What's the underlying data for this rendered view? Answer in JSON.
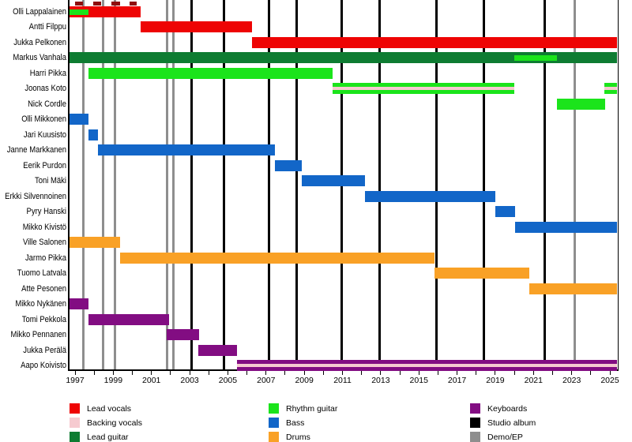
{
  "chart_data": {
    "type": "bar",
    "subtype": "band-membership-timeline-gantt",
    "title": "",
    "x_axis": {
      "range_start": 1996.71,
      "range_end": 2025.41,
      "major_tick_years": [
        1997,
        1999,
        2001,
        2003,
        2005,
        2007,
        2009,
        2011,
        2013,
        2015,
        2017,
        2019,
        2021,
        2023,
        2025
      ],
      "minor_tick_step": 1
    },
    "colors": {
      "lead_vocals": "#EE0404",
      "backing_vocals": "#F6CAD0",
      "lead_guitar": "#0E7C32",
      "rhythm_guitar": "#1BE41B",
      "bass": "#1266C8",
      "drums": "#F9A126",
      "keyboards": "#820D82",
      "studio_album": "#000000",
      "demo_ep": "#8E8E8E"
    },
    "members": [
      {
        "name": "Olli Lappalainen",
        "bars": [
          {
            "role": "lead_vocals",
            "start": 1996.71,
            "end": 2000.43,
            "layer": "main"
          },
          {
            "role": "rhythm_guitar",
            "start": 1996.71,
            "end": 1997.7,
            "layer": "half"
          }
        ]
      },
      {
        "name": "Antti Filppu",
        "bars": [
          {
            "role": "lead_vocals",
            "start": 2000.43,
            "end": 2006.25,
            "layer": "main"
          }
        ]
      },
      {
        "name": "Jukka Pelkonen",
        "bars": [
          {
            "role": "lead_vocals",
            "start": 2006.25,
            "end": 2025.37,
            "layer": "main"
          }
        ]
      },
      {
        "name": "Markus Vanhala",
        "bars": [
          {
            "role": "lead_guitar",
            "start": 1996.71,
            "end": 2025.37,
            "layer": "main"
          },
          {
            "role": "rhythm_guitar",
            "start": 2019.99,
            "end": 2022.23,
            "layer": "half"
          }
        ]
      },
      {
        "name": "Harri Pikka",
        "bars": [
          {
            "role": "rhythm_guitar",
            "start": 1997.7,
            "end": 2010.48,
            "layer": "main"
          }
        ]
      },
      {
        "name": "Joonas Koto",
        "bars": [
          {
            "role": "rhythm_guitar",
            "start": 2010.48,
            "end": 2019.99,
            "layer": "main"
          },
          {
            "role": "backing_vocals",
            "start": 2010.48,
            "end": 2019.99,
            "layer": "stripe"
          },
          {
            "role": "rhythm_guitar",
            "start": 2024.71,
            "end": 2025.37,
            "layer": "main"
          },
          {
            "role": "backing_vocals",
            "start": 2024.71,
            "end": 2025.37,
            "layer": "stripe"
          }
        ]
      },
      {
        "name": "Nick Cordle",
        "bars": [
          {
            "role": "rhythm_guitar",
            "start": 2022.23,
            "end": 2024.75,
            "layer": "main"
          }
        ]
      },
      {
        "name": "Olli Mikkonen",
        "bars": [
          {
            "role": "bass",
            "start": 1996.71,
            "end": 1997.7,
            "layer": "main"
          }
        ]
      },
      {
        "name": "Jari Kuusisto",
        "bars": [
          {
            "role": "bass",
            "start": 1997.7,
            "end": 1998.2,
            "layer": "main"
          }
        ]
      },
      {
        "name": "Janne Markkanen",
        "bars": [
          {
            "role": "bass",
            "start": 1998.2,
            "end": 2007.46,
            "layer": "main"
          }
        ]
      },
      {
        "name": "Eerik Purdon",
        "bars": [
          {
            "role": "bass",
            "start": 2007.46,
            "end": 2008.87,
            "layer": "main"
          }
        ]
      },
      {
        "name": "Toni Mäki",
        "bars": [
          {
            "role": "bass",
            "start": 2008.87,
            "end": 2012.18,
            "layer": "main"
          }
        ]
      },
      {
        "name": "Erkki Silvennoinen",
        "bars": [
          {
            "role": "bass",
            "start": 2012.18,
            "end": 2019.0,
            "layer": "main"
          }
        ]
      },
      {
        "name": "Pyry Hanski",
        "bars": [
          {
            "role": "bass",
            "start": 2019.0,
            "end": 2020.03,
            "layer": "main"
          }
        ]
      },
      {
        "name": "Mikko Kivistö",
        "bars": [
          {
            "role": "bass",
            "start": 2020.03,
            "end": 2025.37,
            "layer": "main"
          }
        ]
      },
      {
        "name": "Ville Salonen",
        "bars": [
          {
            "role": "drums",
            "start": 1996.71,
            "end": 1999.36,
            "layer": "main"
          }
        ]
      },
      {
        "name": "Jarmo Pikka",
        "bars": [
          {
            "role": "drums",
            "start": 1999.36,
            "end": 2015.82,
            "layer": "main"
          }
        ]
      },
      {
        "name": "Tuomo Latvala",
        "bars": [
          {
            "role": "drums",
            "start": 2015.82,
            "end": 2020.78,
            "layer": "main"
          }
        ]
      },
      {
        "name": "Atte Pesonen",
        "bars": [
          {
            "role": "drums",
            "start": 2020.78,
            "end": 2025.37,
            "layer": "main"
          }
        ]
      },
      {
        "name": "Mikko Nykänen",
        "bars": [
          {
            "role": "keyboards",
            "start": 1996.71,
            "end": 1997.7,
            "layer": "main"
          }
        ]
      },
      {
        "name": "Tomi Pekkola",
        "bars": [
          {
            "role": "keyboards",
            "start": 1997.7,
            "end": 2001.92,
            "layer": "main"
          }
        ]
      },
      {
        "name": "Mikko Pennanen",
        "bars": [
          {
            "role": "keyboards",
            "start": 2001.8,
            "end": 2003.49,
            "layer": "main"
          }
        ]
      },
      {
        "name": "Jukka Perälä",
        "bars": [
          {
            "role": "keyboards",
            "start": 2003.45,
            "end": 2005.48,
            "layer": "main"
          }
        ]
      },
      {
        "name": "Aapo Koivisto",
        "bars": [
          {
            "role": "keyboards",
            "start": 2005.48,
            "end": 2025.37,
            "layer": "main"
          },
          {
            "role": "backing_vocals",
            "start": 2005.48,
            "end": 2025.37,
            "layer": "stripe"
          }
        ]
      }
    ],
    "events": {
      "studio_albums": [
        2003.08,
        2004.78,
        2007.17,
        2008.62,
        2010.94,
        2012.96,
        2015.94,
        2018.42,
        2021.57
      ],
      "demos_eps": [
        1997.45,
        1998.45,
        1999.07,
        2001.8,
        2002.13,
        2023.14
      ]
    },
    "legend": {
      "columns": [
        [
          {
            "label": "Lead vocals",
            "role": "lead_vocals"
          },
          {
            "label": "Backing vocals",
            "role": "backing_vocals"
          },
          {
            "label": "Lead guitar",
            "role": "lead_guitar"
          }
        ],
        [
          {
            "label": "Rhythm guitar",
            "role": "rhythm_guitar"
          },
          {
            "label": "Bass",
            "role": "bass"
          },
          {
            "label": "Drums",
            "role": "drums"
          }
        ],
        [
          {
            "label": "Keyboards",
            "role": "keyboards"
          },
          {
            "label": "Studio album",
            "role": "studio_album"
          },
          {
            "label": "Demo/EP",
            "role": "demo_ep"
          }
        ]
      ]
    }
  }
}
